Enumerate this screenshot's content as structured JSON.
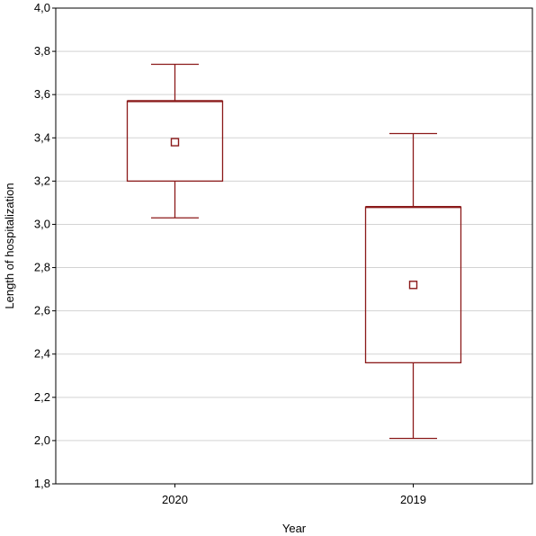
{
  "chart_data": {
    "type": "box",
    "xlabel": "Year",
    "ylabel": "Length of hospitalization",
    "ylim": [
      1.8,
      4.0
    ],
    "yticks": [
      1.8,
      2.0,
      2.2,
      2.4,
      2.6,
      2.8,
      3.0,
      3.2,
      3.4,
      3.6,
      3.8,
      4.0
    ],
    "decimal_separator": ",",
    "grid": true,
    "color": "#8b1a1a",
    "categories": [
      "2020",
      "2019"
    ],
    "boxes": [
      {
        "category": "2020",
        "whisker_low": 3.03,
        "q1": 3.2,
        "q3": 3.57,
        "whisker_high": 3.74,
        "center": 3.38
      },
      {
        "category": "2019",
        "whisker_low": 2.01,
        "q1": 2.36,
        "q3": 3.08,
        "whisker_high": 3.42,
        "center": 2.72
      }
    ]
  }
}
